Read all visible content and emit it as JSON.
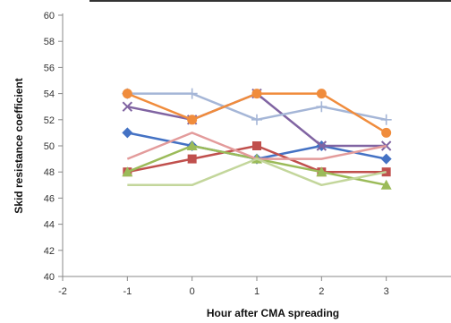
{
  "chart_data": {
    "type": "line",
    "title": "",
    "xlabel": "Hour after CMA spreading",
    "ylabel": "Skid resistance coefficient",
    "xlim": [
      -2,
      4
    ],
    "ylim": [
      40,
      60
    ],
    "x_ticks": [
      -2,
      -1,
      0,
      1,
      2,
      3
    ],
    "y_ticks": [
      40,
      42,
      44,
      46,
      48,
      50,
      52,
      54,
      56,
      58,
      60
    ],
    "grid": false,
    "legend": "none",
    "x": [
      -1,
      0,
      1,
      2,
      3
    ],
    "series": [
      {
        "color": "#4472C4",
        "marker": "diamond",
        "values": [
          51,
          50,
          49,
          50,
          49
        ]
      },
      {
        "color": "#C0504D",
        "marker": "square",
        "values": [
          48,
          49,
          50,
          48,
          48
        ]
      },
      {
        "color": "#9BBB59",
        "marker": "triangle",
        "values": [
          48,
          50,
          49,
          48,
          47
        ]
      },
      {
        "color": "#8064A2",
        "marker": "x",
        "values": [
          53,
          52,
          54,
          50,
          50
        ]
      },
      {
        "color": "#A5B6D7",
        "marker": "plus",
        "values": [
          54,
          54,
          52,
          53,
          52
        ]
      },
      {
        "color": "#F08C3C",
        "marker": "circle",
        "values": [
          54,
          52,
          54,
          54,
          51
        ]
      },
      {
        "color": "#E39B9B",
        "marker": "none",
        "values": [
          49,
          51,
          49,
          49,
          50
        ]
      },
      {
        "color": "#C3D69B",
        "marker": "none",
        "values": [
          47,
          47,
          49,
          47,
          48
        ]
      }
    ]
  }
}
